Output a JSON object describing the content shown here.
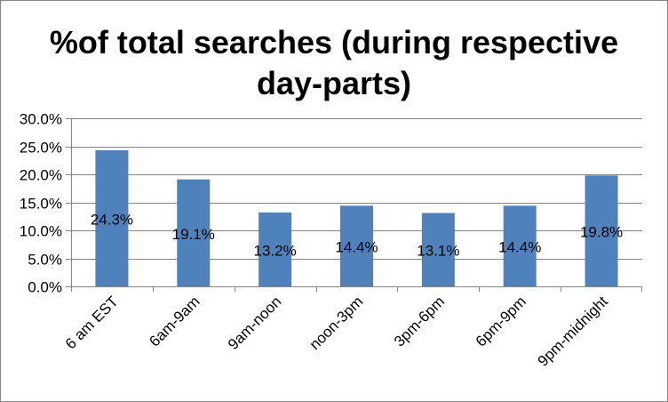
{
  "chart_data": {
    "type": "bar",
    "title": "%of total searches (during respective day-parts)",
    "categories": [
      "6 am EST",
      "6am-9am",
      "9am-noon",
      "noon-3pm",
      "3pm-6pm",
      "6pm-9pm",
      "9pm-midnight"
    ],
    "values": [
      24.3,
      19.1,
      13.2,
      14.4,
      13.1,
      14.4,
      19.8
    ],
    "data_labels": [
      "24.3%",
      "19.1%",
      "13.2%",
      "14.4%",
      "13.1%",
      "14.4%",
      "19.8%"
    ],
    "y_ticks": [
      "0.0%",
      "5.0%",
      "10.0%",
      "15.0%",
      "20.0%",
      "25.0%",
      "30.0%"
    ],
    "xlabel": "",
    "ylabel": "",
    "ylim": [
      0,
      30
    ],
    "grid": true,
    "legend": "none",
    "colors": {
      "bar": "#4F81BD",
      "grid": "#868686",
      "axis": "#868686"
    }
  }
}
